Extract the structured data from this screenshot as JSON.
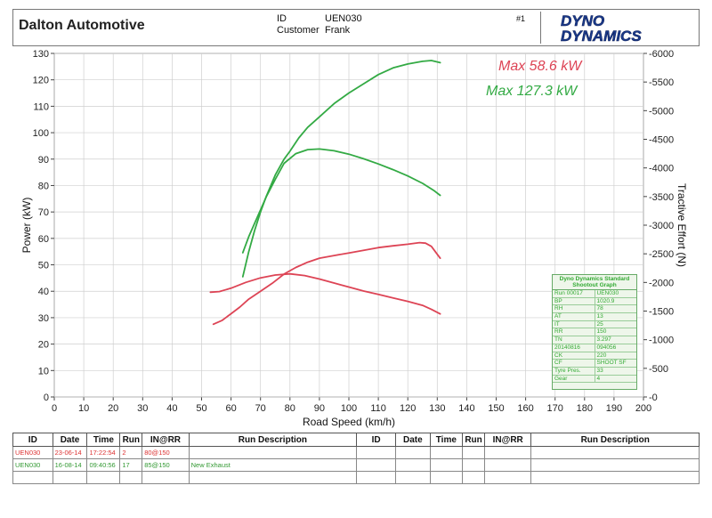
{
  "header": {
    "company": "Dalton Automotive",
    "id_label": "ID",
    "id_value": "UEN030",
    "customer_label": "Customer",
    "customer_value": "Frank",
    "run_marker": "#1",
    "logo_line1": "DYNO",
    "logo_line2": "DYNAMICS"
  },
  "colors": {
    "run1": "#dd4455",
    "run2": "#33aa44"
  },
  "max_labels": {
    "red": "Max 58.6 kW",
    "green": "Max 127.3 kW"
  },
  "chart_data": {
    "type": "line",
    "xlabel": "Road Speed (km/h)",
    "ylabel_left": "Power (kW)",
    "ylabel_right": "Tractive Effort (N)",
    "xlim": [
      0,
      200
    ],
    "ylim_left": [
      0,
      130
    ],
    "ylim_right": [
      0,
      6000
    ],
    "x_ticks": [
      0,
      10,
      20,
      30,
      40,
      50,
      60,
      70,
      80,
      90,
      100,
      110,
      120,
      130,
      140,
      150,
      160,
      170,
      180,
      190,
      200
    ],
    "y_ticks_left": [
      0,
      10,
      20,
      30,
      40,
      50,
      60,
      70,
      80,
      90,
      100,
      110,
      120,
      130
    ],
    "y_ticks_right": [
      0,
      500,
      1000,
      1500,
      2000,
      2500,
      3000,
      3500,
      4000,
      4500,
      5000,
      5500,
      6000
    ],
    "grid": true,
    "series": [
      {
        "axis": "left",
        "color": "red",
        "points": [
          [
            54,
            27.5
          ],
          [
            57,
            29
          ],
          [
            60,
            31.5
          ],
          [
            63,
            34
          ],
          [
            66,
            37
          ],
          [
            70,
            40
          ],
          [
            74,
            43
          ],
          [
            78,
            46.5
          ],
          [
            82,
            49
          ],
          [
            86,
            51
          ],
          [
            90,
            52.5
          ],
          [
            95,
            53.5
          ],
          [
            100,
            54.5
          ],
          [
            105,
            55.5
          ],
          [
            110,
            56.5
          ],
          [
            115,
            57.2
          ],
          [
            120,
            57.8
          ],
          [
            124,
            58.4
          ],
          [
            126,
            58.2
          ],
          [
            128,
            57
          ],
          [
            130,
            54
          ],
          [
            131,
            52.5
          ]
        ]
      },
      {
        "axis": "right",
        "color": "red",
        "points": [
          [
            53,
            1830
          ],
          [
            56,
            1840
          ],
          [
            60,
            1900
          ],
          [
            65,
            2000
          ],
          [
            70,
            2080
          ],
          [
            75,
            2130
          ],
          [
            80,
            2150
          ],
          [
            85,
            2120
          ],
          [
            90,
            2060
          ],
          [
            95,
            1990
          ],
          [
            100,
            1920
          ],
          [
            105,
            1850
          ],
          [
            110,
            1790
          ],
          [
            115,
            1730
          ],
          [
            120,
            1670
          ],
          [
            125,
            1600
          ],
          [
            128,
            1530
          ],
          [
            131,
            1450
          ]
        ]
      },
      {
        "axis": "left",
        "color": "green",
        "points": [
          [
            64,
            45.5
          ],
          [
            66,
            55
          ],
          [
            68,
            63
          ],
          [
            70,
            70
          ],
          [
            72,
            76
          ],
          [
            75,
            84
          ],
          [
            78,
            90
          ],
          [
            80,
            93
          ],
          [
            83,
            98
          ],
          [
            86,
            102
          ],
          [
            90,
            106
          ],
          [
            95,
            111
          ],
          [
            100,
            115
          ],
          [
            105,
            118.5
          ],
          [
            110,
            122
          ],
          [
            115,
            124.5
          ],
          [
            120,
            126
          ],
          [
            125,
            127
          ],
          [
            128,
            127.3
          ],
          [
            131,
            126.5
          ]
        ]
      },
      {
        "axis": "right",
        "color": "green",
        "points": [
          [
            64,
            2520
          ],
          [
            66,
            2800
          ],
          [
            69,
            3150
          ],
          [
            72,
            3500
          ],
          [
            75,
            3800
          ],
          [
            78,
            4080
          ],
          [
            82,
            4250
          ],
          [
            86,
            4320
          ],
          [
            90,
            4330
          ],
          [
            95,
            4300
          ],
          [
            100,
            4240
          ],
          [
            105,
            4160
          ],
          [
            110,
            4070
          ],
          [
            115,
            3970
          ],
          [
            120,
            3860
          ],
          [
            125,
            3730
          ],
          [
            129,
            3600
          ],
          [
            131,
            3520
          ]
        ]
      }
    ]
  },
  "legend_box": {
    "title": "Dyno Dynamics Standard Shootout Graph",
    "rows": [
      [
        "Run 00017",
        "UEN030"
      ],
      [
        "BP",
        "1020.9"
      ],
      [
        "RH",
        "78"
      ],
      [
        "AT",
        "13"
      ],
      [
        "IT",
        "25"
      ],
      [
        "RR",
        "150"
      ],
      [
        "TN",
        "3.297"
      ],
      [
        "20140816",
        "094056"
      ],
      [
        "CK",
        "220"
      ],
      [
        "CF",
        "SHOOT SF"
      ],
      [
        "Tyre Pres.",
        "33"
      ],
      [
        "Gear",
        "4"
      ]
    ]
  },
  "run_table": {
    "headers": [
      "ID",
      "Date",
      "Time",
      "Run",
      "IN@RR",
      "Run Description",
      "ID",
      "Date",
      "Time",
      "Run",
      "IN@RR",
      "Run Description"
    ],
    "rows": [
      {
        "color": "red",
        "cells": [
          "UEN030",
          "23-06-14",
          "17:22:54",
          "2",
          "80@150",
          "",
          "",
          "",
          "",
          "",
          "",
          ""
        ]
      },
      {
        "color": "green",
        "cells": [
          "UEN030",
          "16-08-14",
          "09:40:56",
          "17",
          "85@150",
          "New Exhaust",
          "",
          "",
          "",
          "",
          "",
          ""
        ]
      },
      {
        "color": "none",
        "cells": [
          "",
          "",
          "",
          "",
          "",
          "",
          "",
          "",
          "",
          "",
          "",
          ""
        ]
      }
    ]
  }
}
